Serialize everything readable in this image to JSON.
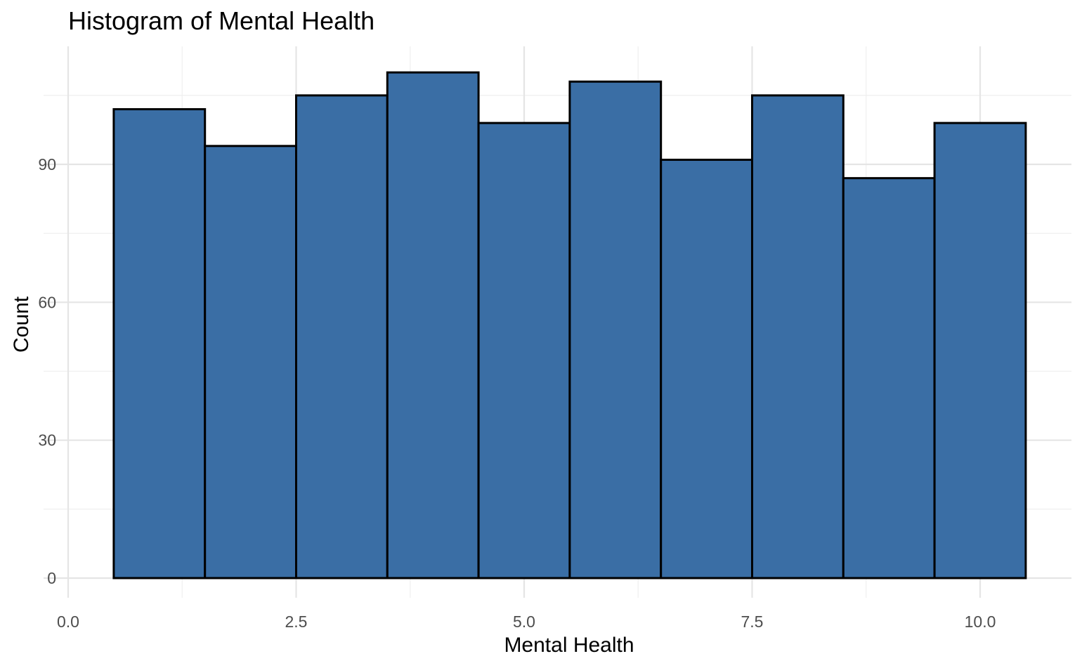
{
  "chart_data": {
    "type": "bar",
    "subtype": "histogram",
    "title": "Histogram of Mental Health",
    "xlabel": "Mental Health",
    "ylabel": "Count",
    "bins": [
      {
        "x_start": 0.5,
        "x_end": 1.5,
        "value": 102
      },
      {
        "x_start": 1.5,
        "x_end": 2.5,
        "value": 94
      },
      {
        "x_start": 2.5,
        "x_end": 3.5,
        "value": 105
      },
      {
        "x_start": 3.5,
        "x_end": 4.5,
        "value": 110
      },
      {
        "x_start": 4.5,
        "x_end": 5.5,
        "value": 99
      },
      {
        "x_start": 5.5,
        "x_end": 6.5,
        "value": 108
      },
      {
        "x_start": 6.5,
        "x_end": 7.5,
        "value": 91
      },
      {
        "x_start": 7.5,
        "x_end": 8.5,
        "value": 105
      },
      {
        "x_start": 8.5,
        "x_end": 9.5,
        "value": 87
      },
      {
        "x_start": 9.5,
        "x_end": 10.5,
        "value": 99
      }
    ],
    "x_ticks": [
      0.0,
      2.5,
      5.0,
      7.5,
      10.0
    ],
    "x_tick_labels": [
      "0.0",
      "2.5",
      "5.0",
      "7.5",
      "10.0"
    ],
    "y_ticks": [
      0,
      30,
      60,
      90
    ],
    "y_tick_labels": [
      "0",
      "30",
      "60",
      "90"
    ],
    "xlim": [
      0.0,
      10.5
    ],
    "ylim": [
      0,
      115.5
    ],
    "grid": true,
    "legend": "none",
    "colors": {
      "bar_fill": "#3A6EA5",
      "bar_outline": "#000000"
    }
  }
}
